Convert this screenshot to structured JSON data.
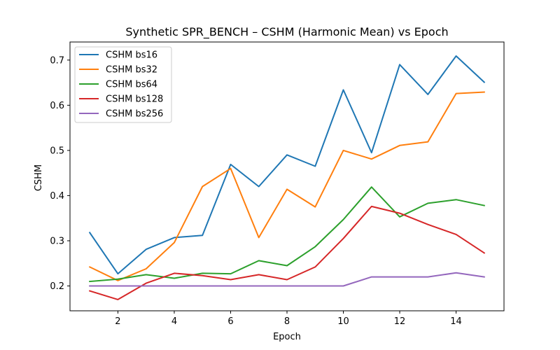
{
  "chart_data": {
    "type": "line",
    "title": "Synthetic SPR_BENCH – CSHM (Harmonic Mean) vs Epoch",
    "xlabel": "Epoch",
    "ylabel": "CSHM",
    "xlim": [
      0.3,
      15.7
    ],
    "ylim": [
      0.145,
      0.74
    ],
    "xticks": [
      2,
      4,
      6,
      8,
      10,
      12,
      14
    ],
    "yticks": [
      0.2,
      0.3,
      0.4,
      0.5,
      0.6,
      0.7
    ],
    "ytick_labels": [
      "0.2",
      "0.3",
      "0.4",
      "0.5",
      "0.6",
      "0.7"
    ],
    "grid": false,
    "legend_position": "top-left",
    "x": [
      1,
      2,
      3,
      4,
      5,
      6,
      7,
      8,
      9,
      10,
      11,
      12,
      13,
      14,
      15
    ],
    "series": [
      {
        "name": "CSHM bs16",
        "color": "#1f77b4",
        "values": [
          0.318,
          0.227,
          0.281,
          0.307,
          0.312,
          0.469,
          0.42,
          0.49,
          0.465,
          0.634,
          0.495,
          0.69,
          0.624,
          0.709,
          0.651
        ]
      },
      {
        "name": "CSHM bs32",
        "color": "#ff7f0e",
        "values": [
          0.242,
          0.212,
          0.238,
          0.296,
          0.42,
          0.46,
          0.307,
          0.414,
          0.375,
          0.5,
          0.481,
          0.511,
          0.519,
          0.626,
          0.629
        ]
      },
      {
        "name": "CSHM bs64",
        "color": "#2ca02c",
        "values": [
          0.21,
          0.215,
          0.225,
          0.217,
          0.228,
          0.227,
          0.256,
          0.245,
          0.287,
          0.347,
          0.419,
          0.353,
          0.383,
          0.391,
          0.378
        ]
      },
      {
        "name": "CSHM bs128",
        "color": "#d62728",
        "values": [
          0.189,
          0.17,
          0.206,
          0.228,
          0.223,
          0.214,
          0.225,
          0.214,
          0.242,
          0.305,
          0.376,
          0.361,
          0.336,
          0.314,
          0.273
        ]
      },
      {
        "name": "CSHM bs256",
        "color": "#9467bd",
        "values": [
          0.2,
          0.2,
          0.2,
          0.2,
          0.2,
          0.2,
          0.2,
          0.2,
          0.2,
          0.2,
          0.22,
          0.22,
          0.22,
          0.229,
          0.22
        ]
      }
    ]
  }
}
